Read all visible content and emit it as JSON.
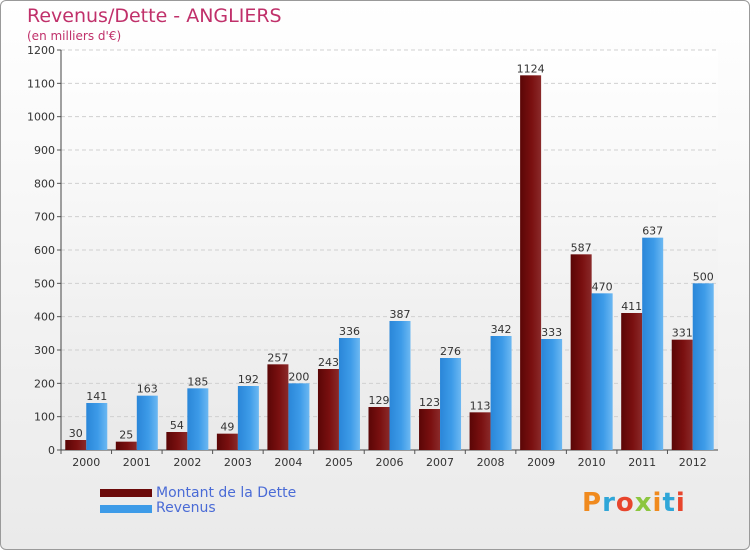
{
  "title": "Revenus/Dette - ANGLIERS",
  "subtitle": "(en milliers d'€)",
  "logo": {
    "text": "Proxiti",
    "colors": [
      "#f08a1e",
      "#2fa6d8",
      "#e8452c",
      "#8cc63f",
      "#f08a1e",
      "#2fa6d8",
      "#e8452c"
    ]
  },
  "colors": {
    "dette": "#7a1010",
    "revenus": "#3d9be8"
  },
  "legend": [
    {
      "label": "Montant de la Dette",
      "color": "#6b0a0a"
    },
    {
      "label": "Revenus",
      "color": "#3d9be8"
    }
  ],
  "chart_data": {
    "type": "bar",
    "categories": [
      "2000",
      "2001",
      "2002",
      "2003",
      "2004",
      "2005",
      "2006",
      "2007",
      "2008",
      "2009",
      "2010",
      "2011",
      "2012"
    ],
    "series": [
      {
        "name": "Montant de la Dette",
        "values": [
          30,
          25,
          54,
          49,
          257,
          243,
          129,
          123,
          113,
          1124,
          587,
          411,
          331
        ]
      },
      {
        "name": "Revenus",
        "values": [
          141,
          163,
          185,
          192,
          200,
          336,
          387,
          276,
          342,
          333,
          470,
          637,
          500
        ]
      }
    ],
    "yticks": [
      "0",
      "100",
      "200",
      "300",
      "400",
      "500",
      "600",
      "700",
      "800",
      "900",
      "1000",
      "1100",
      "1200"
    ],
    "ylim": [
      0,
      1200
    ],
    "grid": true,
    "legend_position": "bottom-left"
  }
}
